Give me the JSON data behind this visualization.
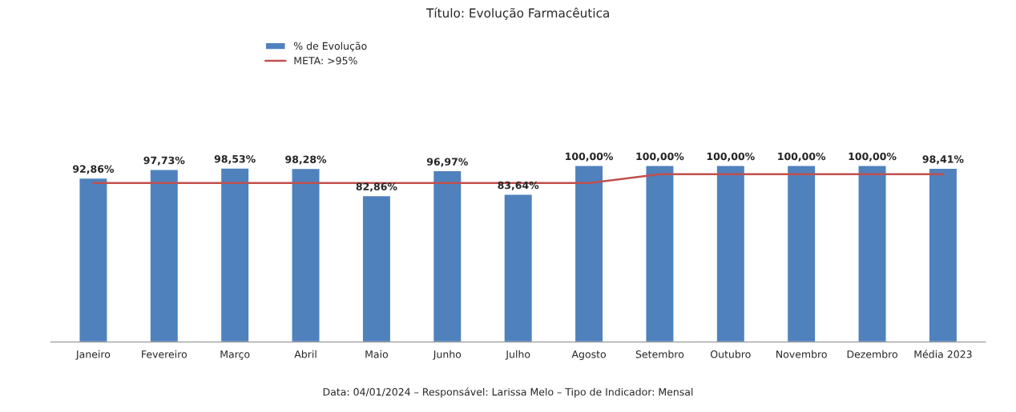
{
  "chart_data": {
    "type": "bar",
    "title": "Título: Evolução Farmacêutica",
    "categories": [
      "Janeiro",
      "Fevereiro",
      "Março",
      "Abril",
      "Maio",
      "Junho",
      "Julho",
      "Agosto",
      "Setembro",
      "Outubro",
      "Novembro",
      "Dezembro",
      "Média 2023"
    ],
    "series": [
      {
        "name": "% de Evolução",
        "color": "#4f81bd",
        "values": [
          92.86,
          97.73,
          98.53,
          98.28,
          82.86,
          96.97,
          83.64,
          100.0,
          100.0,
          100.0,
          100.0,
          100.0,
          98.41
        ],
        "value_labels": [
          "92,86%",
          "97,73%",
          "98,53%",
          "98,28%",
          "82,86%",
          "96,97%",
          "83,64%",
          "100,00%",
          "100,00%",
          "100,00%",
          "100,00%",
          "100,00%",
          "98,41%"
        ]
      },
      {
        "name": "META: >95%",
        "type": "line",
        "color": "#c0504d",
        "values": [
          90,
          90,
          90,
          90,
          90,
          90,
          90,
          90,
          95,
          95,
          95,
          95,
          95
        ]
      }
    ],
    "legend": "top left",
    "grid": false,
    "annotations": [
      "Data: 04/01/2024 – Responsável: Larissa Melo – Tipo de Indicador: Mensal"
    ]
  }
}
